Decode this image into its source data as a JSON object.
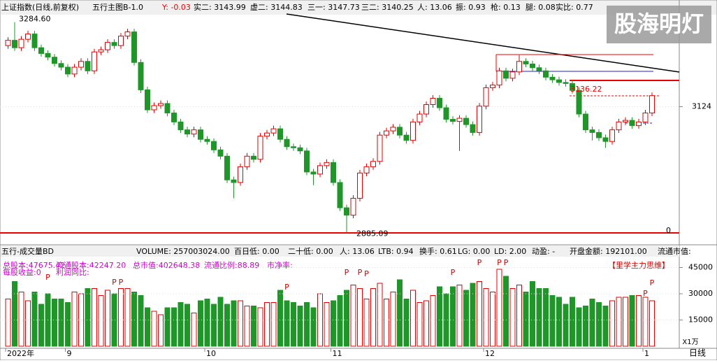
{
  "header": [
    "上证指数(日线,前复权)",
    "五行主图B-1.0",
    "Y: -0.03",
    "实二: 3143.99",
    "虚二: 3144.83",
    "三一: 3147.73",
    "三二: 3140.25",
    "人: 13.06",
    "振: 0.93",
    "枪: 0.13",
    "腿: 0.08",
    "实比: 0.77"
  ],
  "logo": "股海明灯",
  "volume_header": [
    "五行-成交量BD",
    "VOLUME: 257003024.00",
    "百日低: 0.00",
    "二十低: 0.00",
    "人: 13.06",
    "LTB: 0.94",
    "换手: 0.61",
    "LG: 0.00",
    "LD: 2.00",
    "动盈: -",
    "开盘金额: 192101.00",
    "流通市值: "
  ],
  "fundamentals": [
    "总股本:47675.42",
    "流通股本:42247.20",
    "总市值:402648.38",
    "流通比例:88.89",
    "市净率:",
    "每股收益:0",
    "利润同比:",
    "【里学主力思维】"
  ],
  "markers": [
    "P",
    "P",
    "P",
    "P",
    "P",
    "P",
    "P",
    "P",
    "P",
    "P",
    "P",
    "P",
    "P"
  ],
  "period_label": "日线",
  "unit_label": "X1万",
  "chart_data": [
    {
      "type": "candlestick",
      "high_label": "3284.60",
      "low_label": "2885.09",
      "price_label": "3136.22",
      "zero_label": "0",
      "ylim": [
        2875,
        3300
      ],
      "yticks": [
        3124
      ],
      "up_color": "#e00000",
      "down_color": "#1e9628",
      "categories": [
        "2022年",
        null,
        null,
        null,
        null,
        null,
        null,
        null,
        null,
        "9",
        null,
        null,
        null,
        null,
        null,
        null,
        null,
        null,
        null,
        null,
        null,
        null,
        null,
        null,
        null,
        null,
        null,
        null,
        null,
        null,
        "10",
        null,
        null,
        null,
        null,
        null,
        null,
        null,
        null,
        null,
        null,
        null,
        null,
        null,
        null,
        null,
        null,
        null,
        null,
        "11",
        null,
        null,
        null,
        null,
        null,
        null,
        null,
        null,
        null,
        null,
        null,
        null,
        null,
        null,
        null,
        null,
        null,
        null,
        null,
        null,
        null,
        null,
        "12",
        null,
        null,
        null,
        null,
        null,
        null,
        null,
        null,
        null,
        null,
        null,
        null,
        null,
        null,
        null,
        null,
        null,
        null,
        null,
        null,
        null,
        null,
        null,
        "1",
        null
      ],
      "open": [
        3240,
        3250,
        3236,
        3252,
        3262,
        3236,
        3225,
        3218,
        3206,
        3199,
        3186,
        3199,
        3210,
        3192,
        3228,
        3232,
        3246,
        3240,
        3258,
        3266,
        3208,
        3156,
        3118,
        3126,
        3130,
        3112,
        3095,
        3080,
        3072,
        3080,
        3062,
        3058,
        3042,
        3030,
        2985,
        2980,
        3010,
        3030,
        3024,
        3068,
        3074,
        3082,
        3062,
        3048,
        3046,
        3040,
        3000,
        2996,
        3012,
        3018,
        2980,
        2932,
        2918,
        2950,
        2998,
        3010,
        3020,
        3070,
        3078,
        3085,
        3070,
        3060,
        3095,
        3110,
        3128,
        3140,
        3122,
        3100,
        3096,
        3102,
        3090,
        3075,
        3125,
        3160,
        3165,
        3192,
        3178,
        3190,
        3210,
        3205,
        3198,
        3192,
        3180,
        3175,
        3170,
        3168,
        3155,
        3110,
        3080,
        3075,
        3065,
        3058,
        3080,
        3095,
        3098,
        3088,
        3095,
        3112
      ],
      "close": [
        3250,
        3236,
        3252,
        3262,
        3236,
        3225,
        3218,
        3206,
        3199,
        3186,
        3199,
        3210,
        3192,
        3228,
        3232,
        3246,
        3240,
        3258,
        3266,
        3208,
        3156,
        3118,
        3126,
        3130,
        3112,
        3095,
        3080,
        3072,
        3080,
        3062,
        3058,
        3042,
        3030,
        2985,
        2980,
        3010,
        3030,
        3024,
        3068,
        3074,
        3082,
        3062,
        3048,
        3046,
        3040,
        3000,
        2996,
        3012,
        3018,
        2980,
        2932,
        2918,
        2950,
        2998,
        3010,
        3020,
        3070,
        3078,
        3085,
        3070,
        3060,
        3095,
        3110,
        3128,
        3140,
        3122,
        3100,
        3096,
        3102,
        3090,
        3075,
        3125,
        3160,
        3165,
        3192,
        3178,
        3190,
        3210,
        3205,
        3198,
        3192,
        3180,
        3175,
        3170,
        3168,
        3155,
        3110,
        3080,
        3075,
        3065,
        3058,
        3080,
        3095,
        3098,
        3088,
        3095,
        3112,
        3145
      ],
      "high": [
        3256,
        3284.6,
        3258,
        3268,
        3268,
        3242,
        3231,
        3224,
        3212,
        3205,
        3205,
        3216,
        3216,
        3234,
        3238,
        3252,
        3252,
        3264,
        3272,
        3272,
        3214,
        3162,
        3132,
        3136,
        3136,
        3118,
        3101,
        3086,
        3086,
        3086,
        3068,
        3064,
        3048,
        3036,
        2991,
        3016,
        3036,
        3036,
        3074,
        3080,
        3088,
        3088,
        3068,
        3054,
        3052,
        3046,
        3006,
        3018,
        3024,
        3024,
        2986,
        2938,
        2956,
        3004,
        3016,
        3026,
        3076,
        3084,
        3091,
        3091,
        3076,
        3101,
        3116,
        3134,
        3146,
        3146,
        3128,
        3106,
        3108,
        3108,
        3096,
        3131,
        3166,
        3171,
        3198,
        3198,
        3196,
        3222,
        3216,
        3211,
        3204,
        3198,
        3186,
        3181,
        3176,
        3174,
        3161,
        3116,
        3086,
        3081,
        3071,
        3086,
        3101,
        3104,
        3104,
        3101,
        3118,
        3151
      ],
      "low": [
        3234,
        3230,
        3230,
        3246,
        3230,
        3219,
        3212,
        3200,
        3193,
        3180,
        3180,
        3193,
        3186,
        3186,
        3222,
        3226,
        3234,
        3234,
        3252,
        3202,
        3150,
        3112,
        3112,
        3120,
        3106,
        3089,
        3074,
        3066,
        3066,
        3056,
        3052,
        3036,
        3024,
        2979,
        2950,
        2974,
        3004,
        3018,
        3018,
        3062,
        3068,
        3056,
        3042,
        3040,
        3034,
        2994,
        2975,
        2990,
        3006,
        2974,
        2926,
        2885.09,
        2912,
        2944,
        2992,
        3004,
        3014,
        3064,
        3072,
        3064,
        3054,
        3054,
        3089,
        3104,
        3122,
        3116,
        3094,
        3090,
        3040,
        3084,
        3069,
        3069,
        3119,
        3154,
        3159,
        3172,
        3172,
        3184,
        3199,
        3192,
        3186,
        3174,
        3169,
        3164,
        3162,
        3149,
        3104,
        3074,
        3060,
        3059,
        3046,
        3052,
        3074,
        3089,
        3082,
        3082,
        3089,
        3106
      ]
    },
    {
      "type": "bar",
      "ylim": [
        0,
        50000
      ],
      "yticks": [
        45000,
        30000,
        15000
      ],
      "values": [
        27000,
        37000,
        31000,
        26000,
        31000,
        24000,
        30000,
        27000,
        27000,
        25000,
        31000,
        30000,
        33000,
        33000,
        29000,
        32000,
        30000,
        33000,
        33000,
        31000,
        29000,
        22000,
        20000,
        18000,
        22000,
        22000,
        25000,
        24000,
        19000,
        26000,
        27000,
        24000,
        28000,
        24000,
        26000,
        26000,
        23000,
        23000,
        22000,
        25000,
        25000,
        32000,
        26000,
        25000,
        23000,
        25000,
        22000,
        30000,
        25000,
        26000,
        29000,
        32000,
        35000,
        33000,
        27000,
        33000,
        36000,
        27000,
        31000,
        38000,
        27000,
        32000,
        25000,
        26000,
        29000,
        34000,
        30000,
        34000,
        35000,
        32000,
        36000,
        37000,
        33000,
        31000,
        44000,
        40000,
        33000,
        35000,
        31000,
        37000,
        33000,
        33000,
        29000,
        28000,
        24000,
        28000,
        22000,
        23000,
        27000,
        25000,
        23000,
        26000,
        28000,
        28000,
        29000,
        29000,
        28000,
        26000
      ]
    }
  ]
}
